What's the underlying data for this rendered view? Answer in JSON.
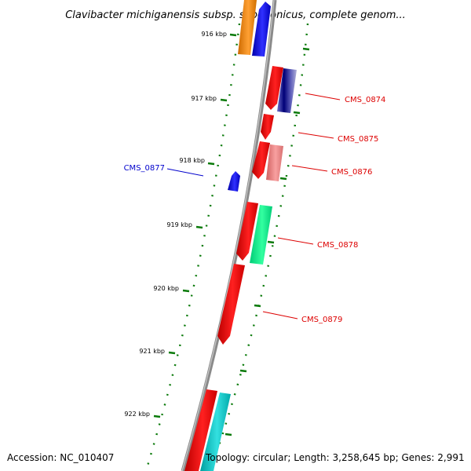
{
  "title": "Clavibacter michiganensis subsp. sepedonicus, complete genom...",
  "ticks": [
    {
      "label": "916 kbp",
      "kbp": 916
    },
    {
      "label": "917 kbp",
      "kbp": 917
    },
    {
      "label": "918 kbp",
      "kbp": 918
    },
    {
      "label": "919 kbp",
      "kbp": 919
    },
    {
      "label": "920 kbp",
      "kbp": 920
    },
    {
      "label": "921 kbp",
      "kbp": 921
    },
    {
      "label": "922 kbp",
      "kbp": 922
    }
  ],
  "gene_labels": [
    {
      "name": "CMS_0874",
      "color": "#dd0000"
    },
    {
      "name": "CMS_0875",
      "color": "#dd0000"
    },
    {
      "name": "CMS_0876",
      "color": "#dd0000"
    },
    {
      "name": "CMS_0877",
      "color": "#0000cc"
    },
    {
      "name": "CMS_0878",
      "color": "#dd0000"
    },
    {
      "name": "CMS_0879",
      "color": "#dd0000"
    }
  ],
  "colors": {
    "backbone": "#808080",
    "tick": "#0a7a0a",
    "orange_gene": "#ff8c00",
    "blue_gene": "#0000ff",
    "red_gene": "#ff0000",
    "navy_gene": "#000088",
    "salmon_gene": "#f08080",
    "green_gene": "#00ff88",
    "cyan_gene": "#00cccc"
  },
  "footer": {
    "accession": "Accession: NC_010407",
    "summary": "Topology: circular; Length: 3,258,645 bp; Genes: 2,991"
  }
}
